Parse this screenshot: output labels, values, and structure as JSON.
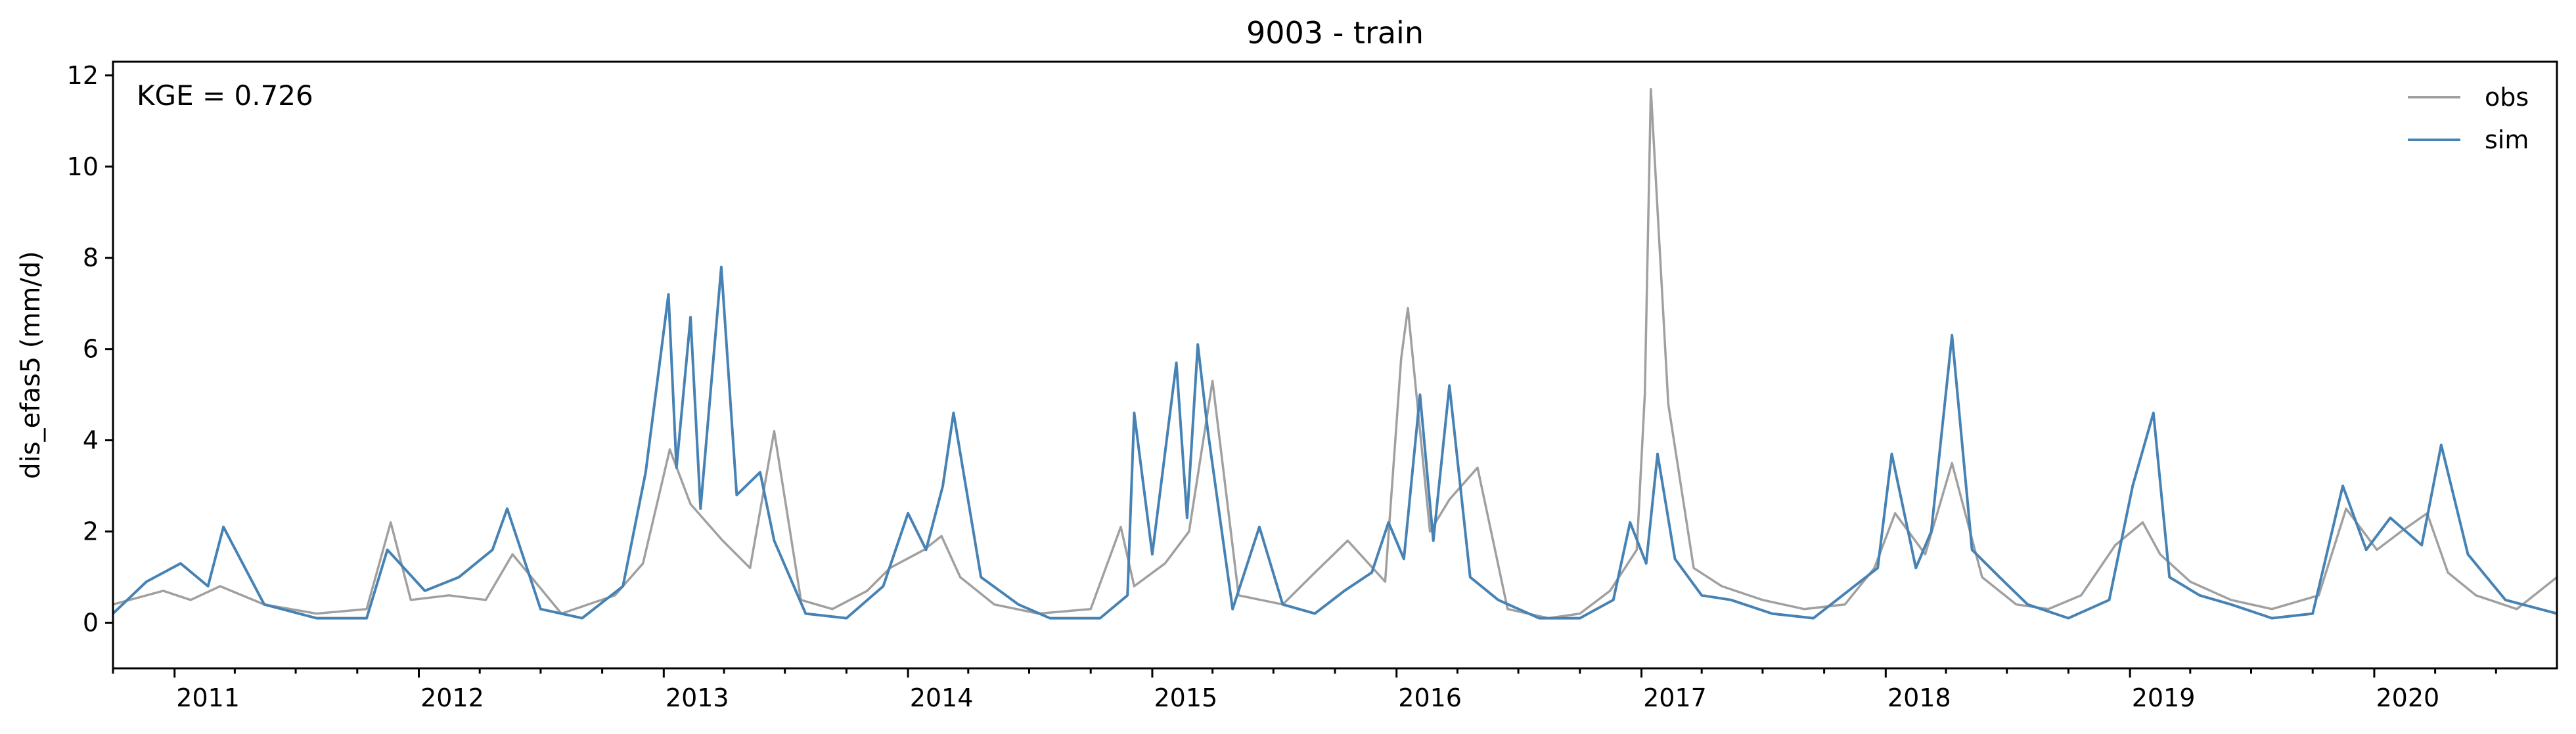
{
  "chart_data": {
    "type": "line",
    "title": "9003 - train",
    "xlabel": "",
    "ylabel": "dis_efas5 (mm/d)",
    "annotation": "KGE = 0.726",
    "xlim": [
      "2010-10-01",
      "2020-09-30"
    ],
    "ylim": [
      -1,
      12.3
    ],
    "yticks": [
      0,
      2,
      4,
      6,
      8,
      10,
      12
    ],
    "yticklabels": [
      "0",
      "2",
      "4",
      "6",
      "8",
      "10",
      "12"
    ],
    "xticklabels": [
      "2011",
      "2012",
      "2013",
      "2014",
      "2015",
      "2016",
      "2017",
      "2018",
      "2019",
      "2020"
    ],
    "grid": false,
    "legend": {
      "position": "top-right",
      "entries": [
        "obs",
        "sim"
      ]
    },
    "series": [
      {
        "name": "obs",
        "color": "#a0a0a0",
        "x": [
          "2010-10-01",
          "2010-12-15",
          "2011-01-25",
          "2011-03-10",
          "2011-05-15",
          "2011-08-01",
          "2011-10-15",
          "2011-11-20",
          "2011-12-20",
          "2012-02-15",
          "2012-04-10",
          "2012-05-20",
          "2012-08-01",
          "2012-10-20",
          "2012-12-01",
          "2013-01-10",
          "2013-02-10",
          "2013-03-30",
          "2013-05-10",
          "2013-06-15",
          "2013-07-25",
          "2013-09-10",
          "2013-11-01",
          "2013-12-05",
          "2014-01-25",
          "2014-02-20",
          "2014-03-20",
          "2014-05-10",
          "2014-07-15",
          "2014-10-01",
          "2014-11-15",
          "2014-12-05",
          "2015-01-20",
          "2015-02-25",
          "2015-04-01",
          "2015-05-10",
          "2015-07-15",
          "2015-09-01",
          "2015-10-20",
          "2015-12-15",
          "2016-01-08",
          "2016-01-18",
          "2016-02-20",
          "2016-03-20",
          "2016-05-01",
          "2016-06-15",
          "2016-08-15",
          "2016-10-01",
          "2016-11-15",
          "2016-12-25",
          "2017-01-06",
          "2017-01-15",
          "2017-02-10",
          "2017-03-20",
          "2017-05-01",
          "2017-07-01",
          "2017-09-01",
          "2017-11-01",
          "2017-12-15",
          "2018-01-15",
          "2018-03-01",
          "2018-04-10",
          "2018-05-25",
          "2018-07-15",
          "2018-09-01",
          "2018-10-20",
          "2018-12-10",
          "2019-01-20",
          "2019-02-15",
          "2019-04-01",
          "2019-06-01",
          "2019-08-01",
          "2019-10-10",
          "2019-11-20",
          "2020-01-05",
          "2020-02-10",
          "2020-03-20",
          "2020-04-20",
          "2020-06-01",
          "2020-08-01",
          "2020-09-30"
        ],
        "y": [
          0.4,
          0.7,
          0.5,
          0.8,
          0.4,
          0.2,
          0.3,
          2.2,
          0.5,
          0.6,
          0.5,
          1.5,
          0.2,
          0.6,
          1.3,
          3.8,
          2.6,
          1.8,
          1.2,
          4.2,
          0.5,
          0.3,
          0.7,
          1.2,
          1.6,
          1.9,
          1.0,
          0.4,
          0.2,
          0.3,
          2.1,
          0.8,
          1.3,
          2.0,
          5.3,
          0.6,
          0.4,
          1.1,
          1.8,
          0.9,
          5.8,
          6.9,
          2.0,
          2.7,
          3.4,
          0.3,
          0.1,
          0.2,
          0.7,
          1.6,
          5.0,
          11.7,
          4.8,
          1.2,
          0.8,
          0.5,
          0.3,
          0.4,
          1.2,
          2.4,
          1.5,
          3.5,
          1.0,
          0.4,
          0.3,
          0.6,
          1.7,
          2.2,
          1.5,
          0.9,
          0.5,
          0.3,
          0.6,
          2.5,
          1.6,
          2.0,
          2.4,
          1.1,
          0.6,
          0.3,
          1.0
        ]
      },
      {
        "name": "sim",
        "color": "#4682b4",
        "x": [
          "2010-10-01",
          "2010-11-20",
          "2011-01-10",
          "2011-02-20",
          "2011-03-15",
          "2011-05-15",
          "2011-08-01",
          "2011-10-15",
          "2011-11-15",
          "2012-01-10",
          "2012-03-01",
          "2012-04-20",
          "2012-05-12",
          "2012-07-01",
          "2012-09-01",
          "2012-11-01",
          "2012-12-05",
          "2013-01-08",
          "2013-01-20",
          "2013-02-10",
          "2013-02-25",
          "2013-03-28",
          "2013-04-20",
          "2013-05-25",
          "2013-06-15",
          "2013-08-01",
          "2013-10-01",
          "2013-11-25",
          "2014-01-01",
          "2014-01-28",
          "2014-02-22",
          "2014-03-10",
          "2014-04-20",
          "2014-06-15",
          "2014-08-01",
          "2014-10-15",
          "2014-11-25",
          "2014-12-05",
          "2015-01-01",
          "2015-02-06",
          "2015-02-22",
          "2015-03-10",
          "2015-03-25",
          "2015-05-01",
          "2015-06-10",
          "2015-07-15",
          "2015-09-01",
          "2015-10-15",
          "2015-11-25",
          "2015-12-20",
          "2016-01-12",
          "2016-02-05",
          "2016-02-25",
          "2016-03-20",
          "2016-04-20",
          "2016-06-01",
          "2016-08-01",
          "2016-10-01",
          "2016-11-20",
          "2016-12-15",
          "2017-01-08",
          "2017-01-25",
          "2017-02-20",
          "2017-04-01",
          "2017-05-15",
          "2017-07-15",
          "2017-09-15",
          "2017-11-15",
          "2017-12-20",
          "2018-01-10",
          "2018-02-15",
          "2018-03-10",
          "2018-04-10",
          "2018-05-10",
          "2018-06-20",
          "2018-08-01",
          "2018-10-01",
          "2018-12-01",
          "2019-01-05",
          "2019-02-05",
          "2019-03-01",
          "2019-04-15",
          "2019-06-01",
          "2019-08-01",
          "2019-10-01",
          "2019-11-15",
          "2019-12-20",
          "2020-01-25",
          "2020-03-12",
          "2020-04-10",
          "2020-05-20",
          "2020-07-15",
          "2020-09-30"
        ],
        "y": [
          0.2,
          0.9,
          1.3,
          0.8,
          2.1,
          0.4,
          0.1,
          0.1,
          1.6,
          0.7,
          1.0,
          1.6,
          2.5,
          0.3,
          0.1,
          0.8,
          3.3,
          7.2,
          3.4,
          6.7,
          2.5,
          7.8,
          2.8,
          3.3,
          1.8,
          0.2,
          0.1,
          0.8,
          2.4,
          1.6,
          3.0,
          4.6,
          1.0,
          0.4,
          0.1,
          0.1,
          0.6,
          4.6,
          1.5,
          5.7,
          2.3,
          6.1,
          4.2,
          0.3,
          2.1,
          0.4,
          0.2,
          0.7,
          1.1,
          2.2,
          1.4,
          5.0,
          1.8,
          5.2,
          1.0,
          0.5,
          0.1,
          0.1,
          0.5,
          2.2,
          1.3,
          3.7,
          1.4,
          0.6,
          0.5,
          0.2,
          0.1,
          0.8,
          1.2,
          3.7,
          1.2,
          2.0,
          6.3,
          1.6,
          1.0,
          0.4,
          0.1,
          0.5,
          3.0,
          4.6,
          1.0,
          0.6,
          0.4,
          0.1,
          0.2,
          3.0,
          1.6,
          2.3,
          1.7,
          3.9,
          1.5,
          0.5,
          0.2
        ]
      }
    ]
  }
}
